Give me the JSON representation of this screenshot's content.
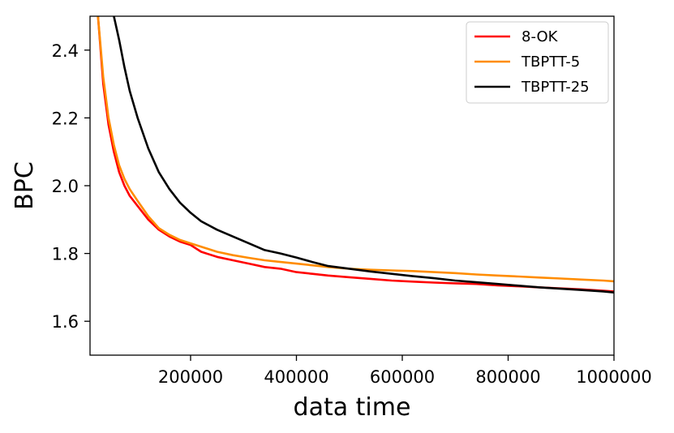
{
  "chart_data": {
    "type": "line",
    "xlabel": "data time",
    "ylabel": "BPC",
    "xlim": [
      10000,
      1000000
    ],
    "ylim": [
      1.5,
      2.5
    ],
    "xticks": [
      200000,
      400000,
      600000,
      800000,
      1000000
    ],
    "xtick_labels": [
      "200000",
      "400000",
      "600000",
      "800000",
      "1000000"
    ],
    "yticks": [
      1.6,
      1.8,
      2.0,
      2.2,
      2.4
    ],
    "ytick_labels": [
      "1.6",
      "1.8",
      "2.0",
      "2.2",
      "2.4"
    ],
    "grid": false,
    "legend_position": "top-right",
    "series": [
      {
        "name": "8-OK",
        "color": "#ff0000",
        "x": [
          25000,
          35000,
          45000,
          55000,
          65000,
          75000,
          85000,
          100000,
          120000,
          140000,
          160000,
          180000,
          200000,
          220000,
          250000,
          280000,
          310000,
          340000,
          370000,
          400000,
          430000,
          460000,
          500000,
          540000,
          580000,
          620000,
          660000,
          700000,
          740000,
          780000,
          820000,
          860000,
          900000,
          940000,
          980000,
          1000000
        ],
        "y": [
          2.5,
          2.3,
          2.18,
          2.1,
          2.04,
          2.0,
          1.97,
          1.94,
          1.9,
          1.87,
          1.85,
          1.835,
          1.825,
          1.805,
          1.79,
          1.78,
          1.77,
          1.76,
          1.755,
          1.745,
          1.74,
          1.735,
          1.73,
          1.725,
          1.72,
          1.717,
          1.714,
          1.712,
          1.71,
          1.706,
          1.703,
          1.7,
          1.697,
          1.694,
          1.69,
          1.688
        ]
      },
      {
        "name": "TBPTT-5",
        "color": "#ff8c00",
        "x": [
          25000,
          35000,
          45000,
          55000,
          65000,
          75000,
          85000,
          100000,
          120000,
          140000,
          160000,
          180000,
          200000,
          220000,
          250000,
          280000,
          310000,
          340000,
          370000,
          400000,
          430000,
          460000,
          500000,
          540000,
          580000,
          620000,
          660000,
          700000,
          740000,
          780000,
          820000,
          860000,
          900000,
          940000,
          980000,
          1000000
        ],
        "y": [
          2.5,
          2.32,
          2.2,
          2.12,
          2.06,
          2.02,
          1.99,
          1.955,
          1.91,
          1.875,
          1.855,
          1.84,
          1.83,
          1.82,
          1.805,
          1.795,
          1.787,
          1.78,
          1.775,
          1.77,
          1.765,
          1.76,
          1.755,
          1.752,
          1.75,
          1.748,
          1.745,
          1.742,
          1.738,
          1.735,
          1.732,
          1.729,
          1.726,
          1.723,
          1.72,
          1.718
        ]
      },
      {
        "name": "TBPTT-25",
        "color": "#000000",
        "x": [
          55000,
          65000,
          75000,
          85000,
          100000,
          120000,
          140000,
          160000,
          180000,
          200000,
          220000,
          250000,
          280000,
          310000,
          340000,
          370000,
          400000,
          430000,
          460000,
          500000,
          540000,
          580000,
          620000,
          660000,
          700000,
          740000,
          780000,
          820000,
          860000,
          900000,
          940000,
          980000,
          1000000
        ],
        "y": [
          2.5,
          2.43,
          2.35,
          2.28,
          2.2,
          2.11,
          2.04,
          1.99,
          1.95,
          1.92,
          1.895,
          1.87,
          1.85,
          1.83,
          1.81,
          1.8,
          1.788,
          1.775,
          1.763,
          1.755,
          1.747,
          1.74,
          1.733,
          1.727,
          1.72,
          1.715,
          1.71,
          1.705,
          1.7,
          1.696,
          1.692,
          1.688,
          1.685
        ]
      }
    ]
  }
}
